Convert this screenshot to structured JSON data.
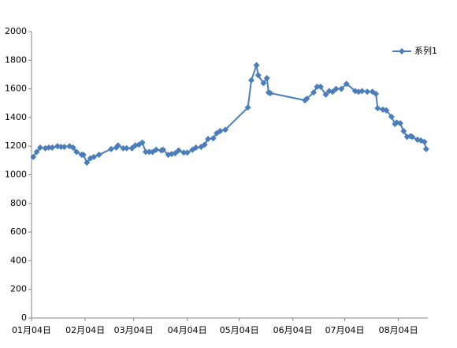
{
  "chart_data": {
    "type": "line",
    "x": [
      "01月05日",
      "01月07日",
      "01月09日",
      "01月12日",
      "01月14日",
      "01月16日",
      "01月19日",
      "01月21日",
      "01月23日",
      "01月26日",
      "01月28日",
      "01月30日",
      "02月02日",
      "02月03日",
      "02月05日",
      "02月07日",
      "02月09日",
      "02月12日",
      "02月19日",
      "02月22日",
      "02月23日",
      "02月26日",
      "02月28日",
      "03月03日",
      "03月05日",
      "03月07日",
      "03月09日",
      "03月11日",
      "03月13日",
      "03月15日",
      "03月17日",
      "03月20日",
      "03月21日",
      "03月24日",
      "03月26日",
      "03月28日",
      "03月30日",
      "04月02日",
      "04月04日",
      "04月07日",
      "04月09日",
      "04月12日",
      "04月14日",
      "04月16日",
      "04月19日",
      "04月21日",
      "04月23日",
      "04月26日",
      "05月09日",
      "05月11日",
      "05月14日",
      "05月15日",
      "05月18日",
      "05月20日",
      "05月21日",
      "05月22日",
      "06月11日",
      "06月12日",
      "06月16日",
      "06月18日",
      "06月20日",
      "06月23日",
      "06月25日",
      "06月27日",
      "06月29日",
      "07月02日",
      "07月05日",
      "07月10日",
      "07月12日",
      "07月14日",
      "07月17日",
      "07月20日",
      "07月22日",
      "07月23日",
      "07月26日",
      "07月28日",
      "07月31日",
      "08月02日",
      "08月03日",
      "08月05日",
      "08月07日",
      "08月09日",
      "08月11日",
      "08月12日",
      "08月15日",
      "08月17日",
      "08月19日",
      "08月20日"
    ],
    "series": [
      {
        "name": "系列1",
        "color": "#4a7ebb",
        "values": [
          1125,
          1160,
          1190,
          1185,
          1190,
          1190,
          1200,
          1195,
          1195,
          1200,
          1190,
          1160,
          1140,
          1140,
          1085,
          1115,
          1125,
          1140,
          1180,
          1190,
          1205,
          1185,
          1185,
          1185,
          1205,
          1210,
          1225,
          1160,
          1160,
          1160,
          1175,
          1170,
          1175,
          1140,
          1145,
          1150,
          1170,
          1155,
          1155,
          1175,
          1190,
          1195,
          1210,
          1250,
          1255,
          1290,
          1305,
          1315,
          1470,
          1660,
          1765,
          1695,
          1640,
          1675,
          1575,
          1570,
          1520,
          1530,
          1575,
          1615,
          1615,
          1560,
          1585,
          1580,
          1600,
          1600,
          1635,
          1585,
          1580,
          1585,
          1580,
          1580,
          1565,
          1465,
          1455,
          1450,
          1405,
          1355,
          1365,
          1360,
          1305,
          1265,
          1270,
          1265,
          1245,
          1240,
          1230,
          1180
        ]
      }
    ],
    "xlim": [
      "01月04日",
      "08月21日"
    ],
    "xticks": [
      "01月04日",
      "02月04日",
      "03月04日",
      "04月04日",
      "05月04日",
      "06月04日",
      "07月04日",
      "08月04日"
    ],
    "ylim": [
      0,
      2000
    ],
    "yticks": [
      0,
      200,
      400,
      600,
      800,
      1000,
      1200,
      1400,
      1600,
      1800,
      2000
    ],
    "grid": false,
    "legend": "right"
  }
}
